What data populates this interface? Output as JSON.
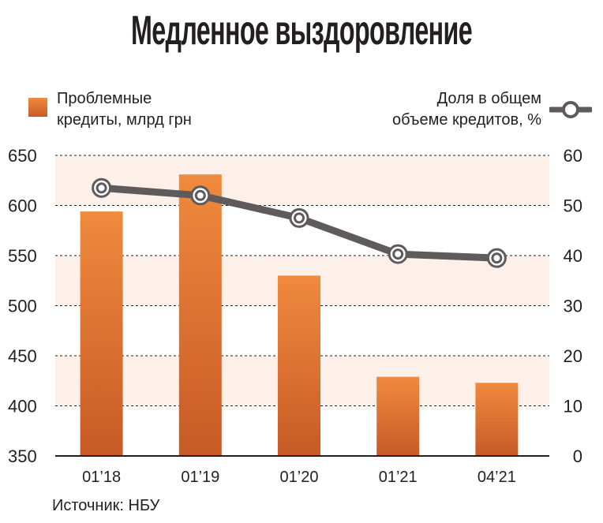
{
  "title": "Медленное выздоровление",
  "legend": {
    "bars_label": "Проблемные\nкредиты, млрд грн",
    "line_label": "Доля в общем\nобъеме кредитов, %"
  },
  "source": "Источник: НБУ",
  "colors": {
    "bar_top": "#f08a3e",
    "bar_bottom": "#c85a26",
    "line": "#5f5a5c",
    "band": "#fdf0e8",
    "axis": "#231f20"
  },
  "chart_data": {
    "type": "bar+line",
    "categories": [
      "01’18",
      "01’19",
      "01’20",
      "01’21",
      "04’21"
    ],
    "series": [
      {
        "name": "Проблемные кредиты, млрд грн",
        "type": "bar",
        "axis": "left",
        "values": [
          594,
          631,
          530,
          429,
          423
        ]
      },
      {
        "name": "Доля в общем объеме кредитов, %",
        "type": "line",
        "axis": "right",
        "values": [
          53.5,
          52.0,
          47.5,
          40.3,
          39.5
        ]
      }
    ],
    "left_axis": {
      "ticks": [
        350,
        400,
        450,
        500,
        550,
        600,
        650
      ],
      "ylim": [
        350,
        650
      ]
    },
    "right_axis": {
      "ticks": [
        0,
        10,
        20,
        30,
        40,
        50,
        60
      ],
      "ylim": [
        0,
        60
      ]
    },
    "grid": "dashed horizontal"
  }
}
